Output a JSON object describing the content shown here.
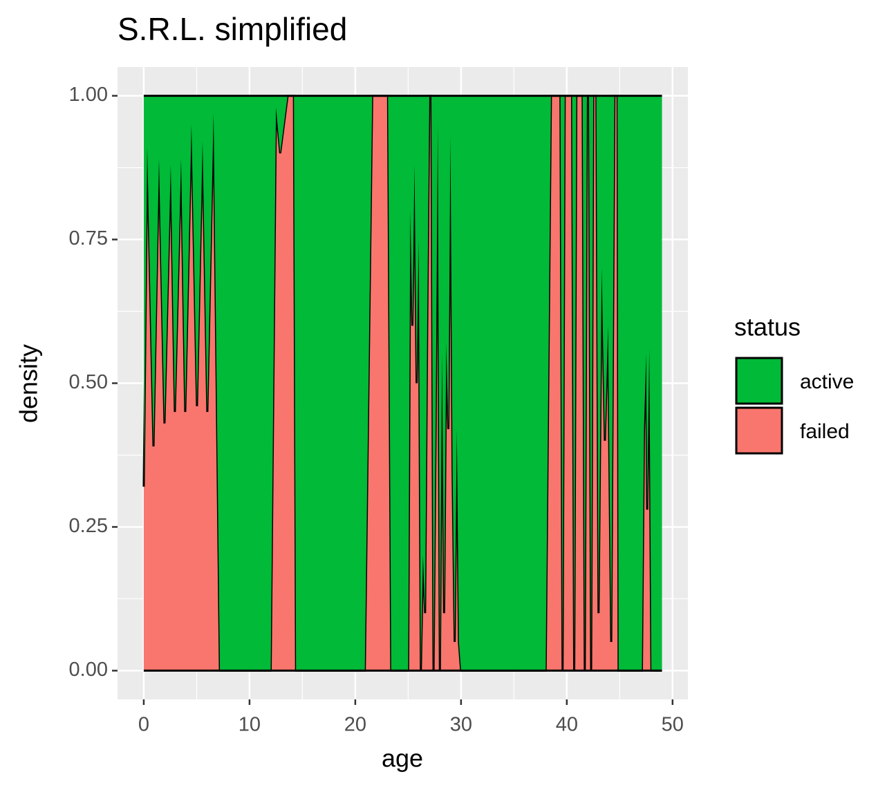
{
  "chart_data": {
    "type": "area",
    "title": "S.R.L. simplified",
    "x_label": "age",
    "y_label": "density",
    "legend_title": "status",
    "stacked": "fill",
    "x": [
      0,
      0.33,
      0.92,
      1.44,
      1.96,
      2.55,
      2.94,
      3.53,
      3.92,
      4.51,
      5.03,
      5.56,
      6.01,
      6.6,
      7.2,
      12.0,
      12.5,
      12.9,
      13.6,
      14.2,
      14.4,
      20.9,
      21.6,
      23.1,
      23.4,
      25.0,
      25.2,
      25.4,
      25.6,
      25.8,
      26.0,
      26.2,
      26.4,
      26.6,
      26.8,
      27.0,
      27.2,
      27.4,
      27.6,
      27.8,
      28.0,
      28.2,
      28.4,
      28.6,
      28.8,
      29.0,
      29.2,
      29.4,
      29.6,
      29.8,
      30.0,
      38.0,
      38.5,
      39.4,
      39.6,
      39.8,
      40.5,
      40.7,
      40.9,
      41.5,
      41.7,
      41.9,
      42.1,
      42.3,
      42.5,
      42.8,
      43.0,
      43.3,
      43.6,
      43.9,
      44.2,
      44.5,
      44.8,
      44.9,
      47.1,
      47.3,
      47.5,
      47.6,
      47.8,
      48.0,
      49.0
    ],
    "series": [
      {
        "name": "failed",
        "color": "#F8766D",
        "values": [
          0.32,
          0.91,
          0.39,
          0.89,
          0.43,
          0.88,
          0.45,
          0.89,
          0.45,
          0.95,
          0.46,
          0.92,
          0.45,
          0.97,
          0,
          0,
          0.98,
          0.9,
          1,
          1,
          0,
          0,
          1,
          1,
          0,
          0,
          0.8,
          0.6,
          0.88,
          0.5,
          0.75,
          0,
          0.2,
          0.1,
          0.6,
          1,
          1,
          0,
          0.43,
          0.95,
          0,
          0.55,
          0.1,
          0.57,
          0.42,
          0.93,
          0.35,
          0.05,
          0.42,
          0.05,
          0,
          0,
          1,
          1,
          0,
          1,
          1,
          0,
          1,
          1,
          0,
          1,
          1,
          0,
          1,
          1,
          0.1,
          0.7,
          0.4,
          0.6,
          0.05,
          1,
          1,
          0,
          0,
          0.42,
          0.55,
          0.28,
          0.56,
          0,
          0
        ]
      },
      {
        "name": "active",
        "color": "#00BA38",
        "values": [
          0.68,
          0.09,
          0.61,
          0.11,
          0.57,
          0.12,
          0.55,
          0.11,
          0.55,
          0.05,
          0.54,
          0.08,
          0.55,
          0.03,
          1,
          1,
          0.02,
          0.1,
          0,
          0,
          1,
          1,
          0,
          0,
          1,
          1,
          0.2,
          0.4,
          0.12,
          0.5,
          0.25,
          1,
          0.8,
          0.9,
          0.4,
          0,
          0,
          1,
          0.57,
          0.05,
          1,
          0.45,
          0.9,
          0.43,
          0.58,
          0.07,
          0.65,
          0.95,
          0.58,
          0.95,
          1,
          1,
          0,
          0,
          1,
          0,
          0,
          1,
          0,
          0,
          1,
          0,
          0,
          1,
          0,
          0,
          0.9,
          0.3,
          0.6,
          0.4,
          0.95,
          0,
          0,
          1,
          1,
          0.58,
          0.45,
          0.72,
          0.44,
          1,
          1
        ]
      }
    ],
    "xlim": [
      -2.48,
      51.45
    ],
    "ylim": [
      -0.05,
      1.05
    ],
    "xticks": [
      0,
      10,
      20,
      30,
      40,
      50
    ],
    "yticks": [
      {
        "value": 0,
        "label": "0.00"
      },
      {
        "value": 0.25,
        "label": "0.25"
      },
      {
        "value": 0.5,
        "label": "0.50"
      },
      {
        "value": 0.75,
        "label": "0.75"
      },
      {
        "value": 1,
        "label": "1.00"
      }
    ],
    "grid": true
  }
}
